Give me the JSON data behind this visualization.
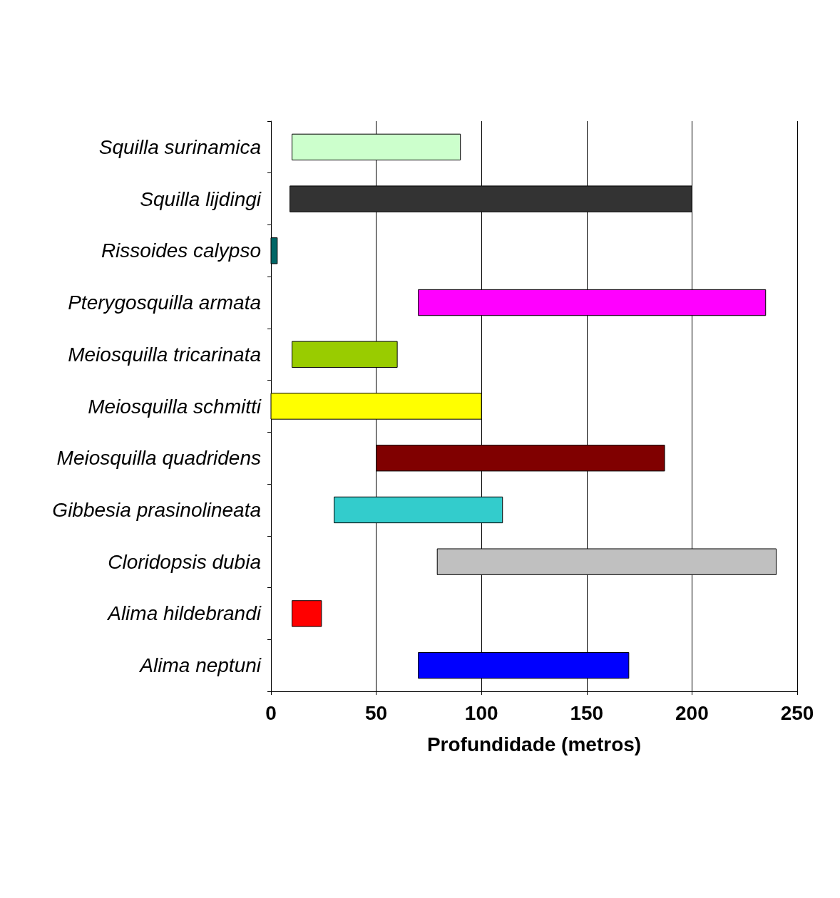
{
  "chart_data": {
    "type": "bar",
    "orientation": "horizontal",
    "xlabel": "Profundidade (metros)",
    "categories": [
      "Squilla surinamica",
      "Squilla lijdingi",
      "Rissoides calypso",
      "Pterygosquilla armata",
      "Meiosquilla tricarinata",
      "Meiosquilla schmitti",
      "Meiosquilla quadridens",
      "Gibbesia prasinolineata",
      "Cloridopsis dubia",
      "Alima hildebrandi",
      "Alima neptuni"
    ],
    "base": [
      10,
      9,
      0,
      70,
      10,
      0,
      50,
      30,
      79,
      10,
      70
    ],
    "values": [
      80,
      191,
      3,
      165,
      50,
      100,
      137,
      80,
      161,
      14,
      100
    ],
    "colors": [
      "#ccffcc",
      "#333333",
      "#006666",
      "#ff00ff",
      "#99cc00",
      "#ffff00",
      "#800000",
      "#33cccc",
      "#c0c0c0",
      "#ff0000",
      "#0000ff"
    ],
    "xlim": [
      0,
      250
    ],
    "xticks": [
      0,
      50,
      100,
      150,
      200,
      250
    ],
    "grid": "x"
  }
}
